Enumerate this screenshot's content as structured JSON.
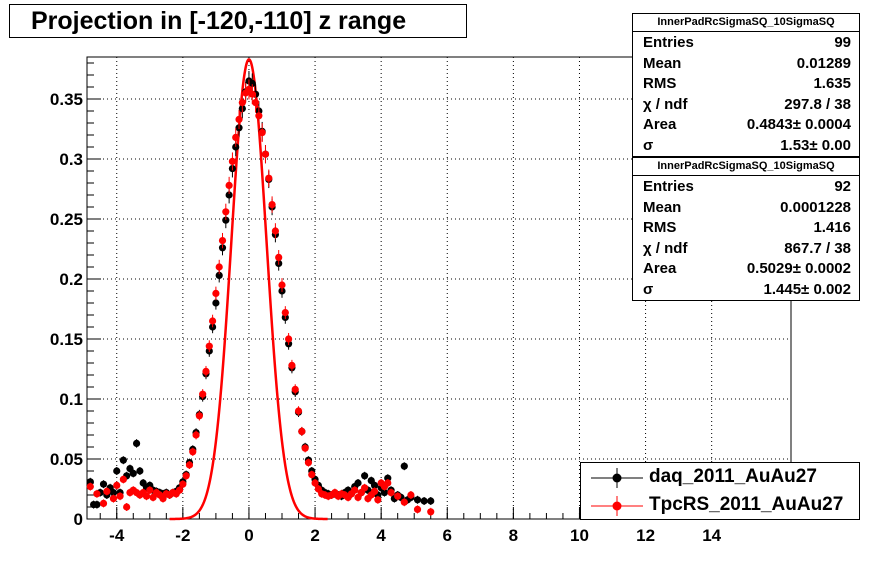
{
  "title": "Projection in [-120,-110] z range",
  "chart_data": {
    "type": "scatter",
    "xlim": [
      -4.9,
      16.4
    ],
    "ylim": [
      0,
      0.385
    ],
    "grid": true,
    "x_ticks": [
      -4,
      -2,
      0,
      2,
      4,
      6,
      8,
      10,
      12,
      14
    ],
    "y_ticks": [
      0,
      0.05,
      0.1,
      0.15,
      0.2,
      0.25,
      0.3,
      0.35
    ],
    "y_tick_labels": [
      "0",
      "0.05",
      "0.1",
      "0.15",
      "0.2",
      "0.25",
      "0.3",
      "0.35"
    ],
    "x_tick_labels": [
      "-4",
      "-2",
      "0",
      "2",
      "4",
      "6",
      "8",
      "10",
      "12",
      "14"
    ],
    "series": [
      {
        "name": "daq_2011_AuAu27",
        "color": "#000000",
        "points": [
          [
            -4.8,
            0.031
          ],
          [
            -4.7,
            0.012
          ],
          [
            -4.6,
            0.012
          ],
          [
            -4.5,
            0.022
          ],
          [
            -4.4,
            0.029
          ],
          [
            -4.3,
            0.02
          ],
          [
            -4.2,
            0.026
          ],
          [
            -4.1,
            0.022
          ],
          [
            -4.0,
            0.04
          ],
          [
            -3.9,
            0.022
          ],
          [
            -3.8,
            0.049
          ],
          [
            -3.7,
            0.036
          ],
          [
            -3.6,
            0.042
          ],
          [
            -3.5,
            0.038
          ],
          [
            -3.4,
            0.063
          ],
          [
            -3.3,
            0.04
          ],
          [
            -3.2,
            0.03
          ],
          [
            -3.1,
            0.026
          ],
          [
            -3.0,
            0.028
          ],
          [
            -2.9,
            0.024
          ],
          [
            -2.8,
            0.023
          ],
          [
            -2.7,
            0.022
          ],
          [
            -2.6,
            0.021
          ],
          [
            -2.5,
            0.022
          ],
          [
            -2.4,
            0.02
          ],
          [
            -2.3,
            0.022
          ],
          [
            -2.2,
            0.023
          ],
          [
            -2.1,
            0.026
          ],
          [
            -2.0,
            0.031
          ],
          [
            -1.9,
            0.037
          ],
          [
            -1.8,
            0.047
          ],
          [
            -1.7,
            0.058
          ],
          [
            -1.6,
            0.072
          ],
          [
            -1.5,
            0.087
          ],
          [
            -1.4,
            0.102
          ],
          [
            -1.3,
            0.121
          ],
          [
            -1.2,
            0.14
          ],
          [
            -1.1,
            0.16
          ],
          [
            -1.0,
            0.18
          ],
          [
            -0.9,
            0.203
          ],
          [
            -0.8,
            0.226
          ],
          [
            -0.7,
            0.249
          ],
          [
            -0.6,
            0.27
          ],
          [
            -0.5,
            0.292
          ],
          [
            -0.4,
            0.31
          ],
          [
            -0.3,
            0.326
          ],
          [
            -0.2,
            0.342
          ],
          [
            -0.1,
            0.356
          ],
          [
            0.0,
            0.365
          ],
          [
            0.1,
            0.363
          ],
          [
            0.2,
            0.354
          ],
          [
            0.3,
            0.34
          ],
          [
            0.4,
            0.323
          ],
          [
            0.5,
            0.304
          ],
          [
            0.6,
            0.283
          ],
          [
            0.7,
            0.26
          ],
          [
            0.8,
            0.237
          ],
          [
            0.9,
            0.213
          ],
          [
            1.0,
            0.19
          ],
          [
            1.1,
            0.168
          ],
          [
            1.2,
            0.146
          ],
          [
            1.3,
            0.126
          ],
          [
            1.4,
            0.106
          ],
          [
            1.5,
            0.089
          ],
          [
            1.6,
            0.073
          ],
          [
            1.7,
            0.06
          ],
          [
            1.8,
            0.049
          ],
          [
            1.9,
            0.04
          ],
          [
            2.0,
            0.033
          ],
          [
            2.1,
            0.028
          ],
          [
            2.2,
            0.024
          ],
          [
            2.3,
            0.022
          ],
          [
            2.4,
            0.021
          ],
          [
            2.5,
            0.02
          ],
          [
            2.6,
            0.021
          ],
          [
            2.7,
            0.02
          ],
          [
            2.8,
            0.019
          ],
          [
            2.9,
            0.022
          ],
          [
            3.0,
            0.024
          ],
          [
            3.1,
            0.021
          ],
          [
            3.2,
            0.027
          ],
          [
            3.3,
            0.03
          ],
          [
            3.4,
            0.022
          ],
          [
            3.5,
            0.036
          ],
          [
            3.6,
            0.024
          ],
          [
            3.7,
            0.032
          ],
          [
            3.8,
            0.028
          ],
          [
            3.9,
            0.02
          ],
          [
            4.0,
            0.026
          ],
          [
            4.1,
            0.022
          ],
          [
            4.2,
            0.034
          ],
          [
            4.3,
            0.024
          ],
          [
            4.4,
            0.017
          ],
          [
            4.5,
            0.02
          ],
          [
            4.6,
            0.018
          ],
          [
            4.7,
            0.044
          ],
          [
            4.8,
            0.016
          ],
          [
            4.9,
            0.018
          ],
          [
            5.1,
            0.016
          ],
          [
            5.3,
            0.015
          ],
          [
            5.5,
            0.015
          ]
        ]
      },
      {
        "name": "TpcRS_2011_AuAu27",
        "color": "#ff0000",
        "points": [
          [
            -4.8,
            0.027
          ],
          [
            -4.6,
            0.021
          ],
          [
            -4.4,
            0.013
          ],
          [
            -4.3,
            0.023
          ],
          [
            -4.1,
            0.017
          ],
          [
            -4.0,
            0.028
          ],
          [
            -3.9,
            0.019
          ],
          [
            -3.8,
            0.033
          ],
          [
            -3.7,
            0.01
          ],
          [
            -3.6,
            0.022
          ],
          [
            -3.5,
            0.024
          ],
          [
            -3.4,
            0.022
          ],
          [
            -3.3,
            0.02
          ],
          [
            -3.2,
            0.022
          ],
          [
            -3.1,
            0.019
          ],
          [
            -3.0,
            0.024
          ],
          [
            -2.9,
            0.018
          ],
          [
            -2.8,
            0.022
          ],
          [
            -2.7,
            0.02
          ],
          [
            -2.6,
            0.017
          ],
          [
            -2.5,
            0.021
          ],
          [
            -2.4,
            0.02
          ],
          [
            -2.3,
            0.022
          ],
          [
            -2.2,
            0.021
          ],
          [
            -2.1,
            0.024
          ],
          [
            -2.0,
            0.029
          ],
          [
            -1.9,
            0.036
          ],
          [
            -1.8,
            0.045
          ],
          [
            -1.7,
            0.056
          ],
          [
            -1.6,
            0.07
          ],
          [
            -1.5,
            0.086
          ],
          [
            -1.4,
            0.104
          ],
          [
            -1.3,
            0.123
          ],
          [
            -1.2,
            0.144
          ],
          [
            -1.1,
            0.165
          ],
          [
            -1.0,
            0.188
          ],
          [
            -0.9,
            0.21
          ],
          [
            -0.8,
            0.232
          ],
          [
            -0.7,
            0.256
          ],
          [
            -0.6,
            0.278
          ],
          [
            -0.5,
            0.298
          ],
          [
            -0.4,
            0.318
          ],
          [
            -0.3,
            0.333
          ],
          [
            -0.2,
            0.347
          ],
          [
            -0.1,
            0.355
          ],
          [
            0.0,
            0.358
          ],
          [
            0.1,
            0.354
          ],
          [
            0.2,
            0.347
          ],
          [
            0.3,
            0.336
          ],
          [
            0.4,
            0.322
          ],
          [
            0.5,
            0.304
          ],
          [
            0.6,
            0.284
          ],
          [
            0.7,
            0.262
          ],
          [
            0.8,
            0.24
          ],
          [
            0.9,
            0.218
          ],
          [
            1.0,
            0.195
          ],
          [
            1.1,
            0.172
          ],
          [
            1.2,
            0.15
          ],
          [
            1.3,
            0.128
          ],
          [
            1.4,
            0.108
          ],
          [
            1.5,
            0.09
          ],
          [
            1.6,
            0.073
          ],
          [
            1.7,
            0.059
          ],
          [
            1.8,
            0.047
          ],
          [
            1.9,
            0.037
          ],
          [
            2.0,
            0.03
          ],
          [
            2.1,
            0.025
          ],
          [
            2.2,
            0.021
          ],
          [
            2.3,
            0.02
          ],
          [
            2.4,
            0.019
          ],
          [
            2.5,
            0.02
          ],
          [
            2.6,
            0.022
          ],
          [
            2.7,
            0.019
          ],
          [
            2.8,
            0.021
          ],
          [
            2.9,
            0.02
          ],
          [
            3.0,
            0.018
          ],
          [
            3.1,
            0.021
          ],
          [
            3.2,
            0.024
          ],
          [
            3.3,
            0.018
          ],
          [
            3.4,
            0.022
          ],
          [
            3.5,
            0.026
          ],
          [
            3.6,
            0.017
          ],
          [
            3.7,
            0.02
          ],
          [
            3.8,
            0.023
          ],
          [
            3.9,
            0.016
          ],
          [
            4.0,
            0.03
          ],
          [
            4.1,
            0.027
          ],
          [
            4.2,
            0.03
          ],
          [
            4.3,
            0.022
          ],
          [
            4.5,
            0.019
          ],
          [
            4.7,
            0.014
          ],
          [
            4.9,
            0.02
          ],
          [
            5.1,
            0.008
          ],
          [
            5.5,
            0.006
          ]
        ]
      }
    ],
    "fits": [
      {
        "series": "TpcRS_2011_AuAu27",
        "color": "#ff0000",
        "amplitude": 0.383,
        "mean": 0.0,
        "sigma": 0.53
      }
    ]
  },
  "stats": [
    {
      "title": "InnerPadRcSigmaSQ_10SigmaSQ",
      "rows": [
        {
          "key": "Entries",
          "value": "99"
        },
        {
          "key": "Mean",
          "value": "0.01289"
        },
        {
          "key": "RMS",
          "value": "1.635"
        },
        {
          "key": "χ / ndf",
          "value": "297.8 / 38"
        },
        {
          "key": "Area",
          "value": "0.4843± 0.0004"
        },
        {
          "key": "σ",
          "value": "1.53± 0.00"
        }
      ]
    },
    {
      "title": "InnerPadRcSigmaSQ_10SigmaSQ",
      "rows": [
        {
          "key": "Entries",
          "value": "92"
        },
        {
          "key": "Mean",
          "value": "0.0001228"
        },
        {
          "key": "RMS",
          "value": "1.416"
        },
        {
          "key": "χ / ndf",
          "value": "867.7 / 38"
        },
        {
          "key": "Area",
          "value": "0.5029± 0.0002"
        },
        {
          "key": "σ",
          "value": "1.445± 0.002"
        }
      ]
    }
  ],
  "legend": [
    {
      "label": "daq_2011_AuAu27",
      "color": "#000000"
    },
    {
      "label": "TpcRS_2011_AuAu27",
      "color": "#ff0000"
    }
  ]
}
